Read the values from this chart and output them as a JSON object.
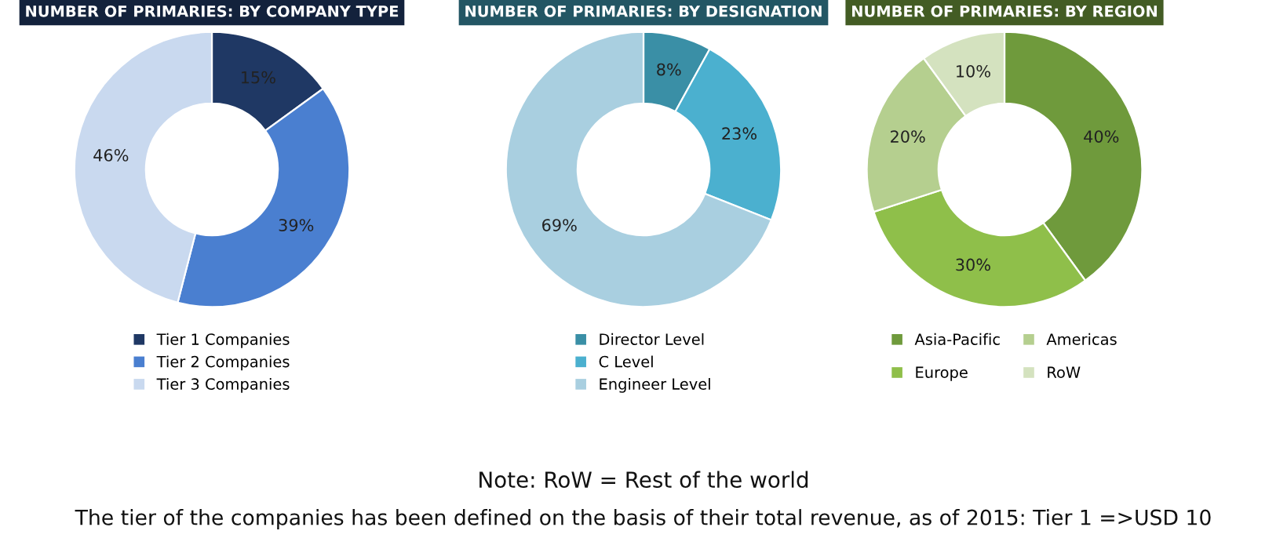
{
  "chart_data": [
    {
      "type": "donut",
      "title": "NUMBER OF PRIMARIES: BY COMPANY TYPE",
      "categories": [
        "Tier 1 Companies",
        "Tier 2 Companies",
        "Tier 3 Companies"
      ],
      "values": [
        15,
        39,
        46
      ],
      "value_labels": [
        "15%",
        "39%",
        "46%"
      ],
      "colors": [
        "#1f3864",
        "#4a7fd0",
        "#c9d9ef"
      ],
      "legend": "bottom"
    },
    {
      "type": "donut",
      "title": "NUMBER OF PRIMARIES: BY DESIGNATION",
      "categories": [
        "Director Level",
        "C Level",
        "Engineer Level"
      ],
      "values": [
        8,
        23,
        69
      ],
      "value_labels": [
        "8%",
        "23%",
        "69%"
      ],
      "colors": [
        "#3a8fa6",
        "#4bb0cf",
        "#a9cfe0"
      ],
      "legend": "bottom"
    },
    {
      "type": "donut",
      "title": "NUMBER OF PRIMARIES: BY REGION",
      "categories": [
        "Asia-Pacific",
        "Europe",
        "Americas",
        "RoW"
      ],
      "values": [
        40,
        30,
        20,
        10
      ],
      "value_labels": [
        "40%",
        "30%",
        "20%",
        "10%"
      ],
      "colors": [
        "#6f9a3c",
        "#8fbf4a",
        "#b5cf8f",
        "#d4e2bf"
      ],
      "legend": "bottom",
      "annotations": [
        "Note: RoW = Rest of the world",
        "The tier of the companies has been defined on the basis of their total revenue, as of 2015: Tier 1 =>USD 10"
      ]
    }
  ]
}
